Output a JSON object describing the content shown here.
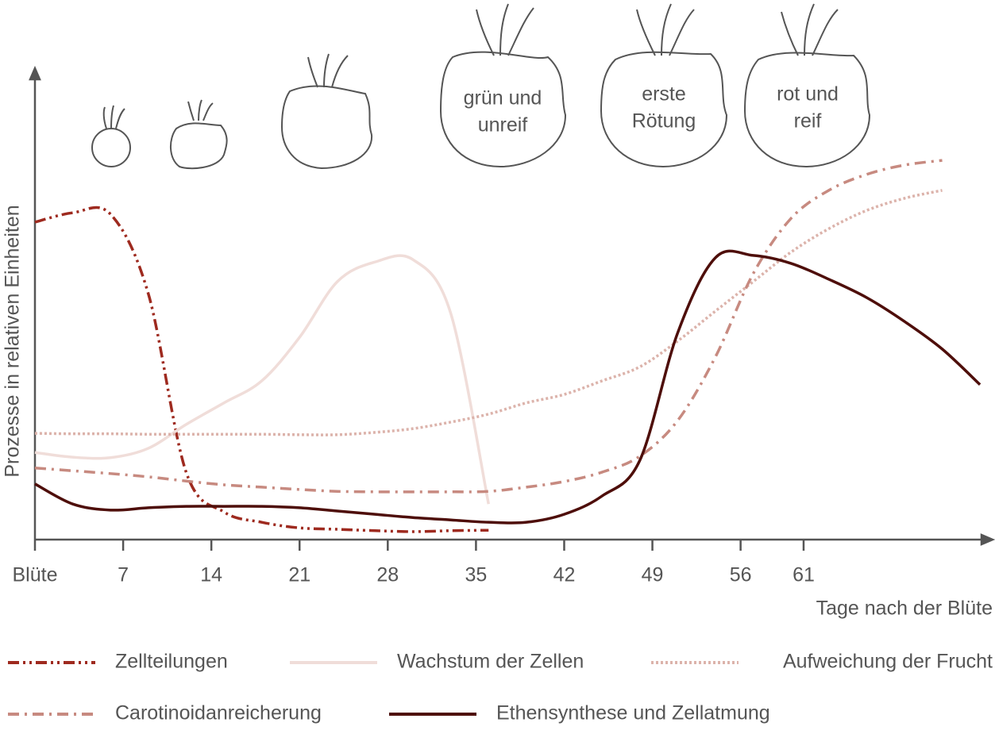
{
  "chart_data": {
    "type": "line",
    "y_label": "Prozesse in relativen Einheiten",
    "x_label": "Tage nach der Blüte",
    "xlim": [
      0,
      76
    ],
    "ylim": [
      0,
      100
    ],
    "xticks": [
      {
        "value": 0,
        "label": "Blüte"
      },
      7,
      14,
      21,
      28,
      35,
      42,
      49,
      56,
      61
    ],
    "annotations": [
      {
        "lines": [
          "grün und",
          "unreif"
        ]
      },
      {
        "lines": [
          "erste",
          "Rötung"
        ]
      },
      {
        "lines": [
          "rot und",
          "reif"
        ]
      }
    ],
    "x": [
      0,
      3,
      6,
      9,
      12,
      15,
      18,
      21,
      24,
      27,
      30,
      33,
      36,
      39,
      42,
      45,
      48,
      51,
      54,
      57,
      60,
      63,
      66,
      69,
      72,
      75
    ],
    "series": [
      {
        "name": "Zellteilungen",
        "color": "#9e2a1f",
        "style": "dash-dot-dot",
        "values": [
          67.8,
          69.8,
          69.5,
          52.5,
          14.4,
          5.9,
          3.7,
          2.5,
          2.2,
          1.9,
          1.7,
          1.9,
          2.0,
          null,
          null,
          null,
          null,
          null,
          null,
          null,
          null,
          null,
          null,
          null,
          null,
          null
        ]
      },
      {
        "name": "Wachstum der Zellen",
        "color": "#f0ddd9",
        "style": "solid",
        "values": [
          18.6,
          17.6,
          17.5,
          19.5,
          24.6,
          29.2,
          33.9,
          43.2,
          55.1,
          59.3,
          59.8,
          48.3,
          7.6,
          null,
          null,
          null,
          null,
          null,
          null,
          null,
          null,
          null,
          null,
          null,
          null,
          null
        ]
      },
      {
        "name": "Aufweichung der Frucht",
        "color": "#dcb3ab",
        "style": "dotted",
        "values": [
          22.7,
          22.6,
          22.6,
          22.5,
          22.5,
          22.5,
          22.5,
          22.4,
          22.4,
          22.9,
          23.7,
          25.1,
          26.8,
          29.2,
          31.0,
          33.9,
          36.9,
          42.4,
          48.8,
          55.1,
          61.4,
          66.4,
          70.3,
          72.9,
          74.6,
          null
        ]
      },
      {
        "name": "Carotinoidanreicherung",
        "color": "#c78a80",
        "style": "dash-dot",
        "values": [
          15.3,
          14.7,
          14.1,
          13.4,
          12.5,
          11.7,
          11.2,
          10.7,
          10.3,
          10.2,
          10.2,
          10.2,
          10.3,
          11.2,
          12.4,
          14.4,
          17.8,
          25.4,
          39.0,
          56.8,
          68.6,
          74.6,
          78.0,
          80.0,
          81.0,
          null
        ]
      },
      {
        "name": "Ethensynthese und Zellatmung",
        "color": "#4e0e0a",
        "style": "solid",
        "values": [
          11.9,
          7.6,
          6.3,
          6.8,
          7.1,
          7.1,
          7.1,
          6.8,
          6.1,
          5.4,
          4.7,
          4.2,
          3.7,
          3.7,
          5.4,
          9.3,
          16.9,
          44.1,
          60.2,
          60.7,
          59.0,
          55.6,
          51.7,
          46.6,
          40.7,
          33.1
        ]
      }
    ]
  }
}
